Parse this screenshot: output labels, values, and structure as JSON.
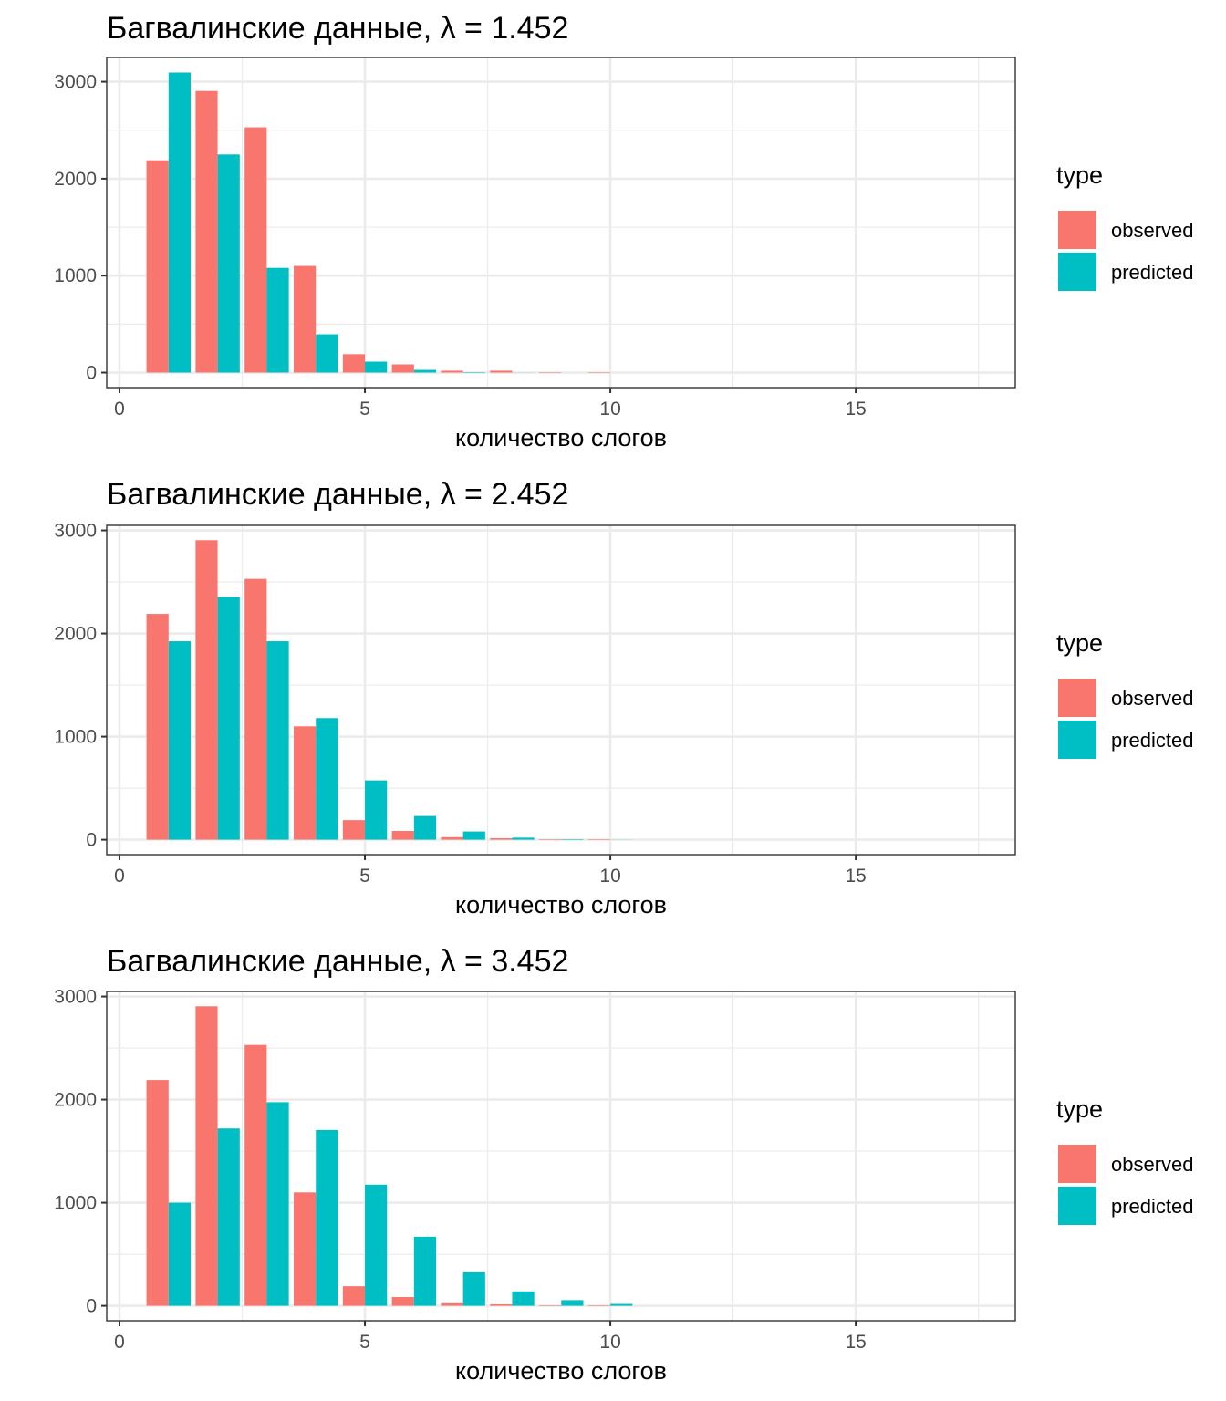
{
  "chart_data": [
    {
      "type": "bar",
      "title": "Багвалинские данные, λ = 1.452",
      "xlabel": "количество слогов",
      "ylabel": "",
      "x": [
        1,
        2,
        3,
        4,
        5,
        6,
        7,
        8,
        9,
        10
      ],
      "series": [
        {
          "name": "observed",
          "color": "#F8766D",
          "values": [
            2190,
            2905,
            2530,
            1100,
            190,
            85,
            20,
            20,
            5,
            5
          ]
        },
        {
          "name": "predicted",
          "color": "#00BFC4",
          "values": [
            3095,
            2250,
            1080,
            395,
            113,
            28,
            5,
            1,
            0,
            0
          ]
        }
      ],
      "xlim": [
        -0.26,
        18.25
      ],
      "xticks": [
        0,
        5,
        10,
        15
      ],
      "yticks": [
        0,
        1000,
        2000,
        3000
      ],
      "ylim": [
        -155,
        3250
      ],
      "grid": true,
      "legend": {
        "title": "type",
        "position": "right"
      }
    },
    {
      "type": "bar",
      "title": "Багвалинские данные, λ = 2.452",
      "xlabel": "количество слогов",
      "ylabel": "",
      "x": [
        1,
        2,
        3,
        4,
        5,
        6,
        7,
        8,
        9,
        10
      ],
      "series": [
        {
          "name": "observed",
          "color": "#F8766D",
          "values": [
            2190,
            2905,
            2530,
            1100,
            190,
            85,
            25,
            15,
            5,
            5
          ]
        },
        {
          "name": "predicted",
          "color": "#00BFC4",
          "values": [
            1925,
            2355,
            1925,
            1180,
            575,
            230,
            80,
            20,
            5,
            1
          ]
        }
      ],
      "xlim": [
        -0.26,
        18.25
      ],
      "xticks": [
        0,
        5,
        10,
        15
      ],
      "yticks": [
        0,
        1000,
        2000,
        3000
      ],
      "ylim": [
        -145,
        3049
      ],
      "grid": true,
      "legend": {
        "title": "type",
        "position": "right"
      }
    },
    {
      "type": "bar",
      "title": "Багвалинские данные, λ = 3.452",
      "xlabel": "количество слогов",
      "ylabel": "",
      "x": [
        1,
        2,
        3,
        4,
        5,
        6,
        7,
        8,
        9,
        10
      ],
      "series": [
        {
          "name": "observed",
          "color": "#F8766D",
          "values": [
            2190,
            2905,
            2530,
            1100,
            190,
            85,
            25,
            15,
            5,
            5
          ]
        },
        {
          "name": "predicted",
          "color": "#00BFC4",
          "values": [
            1000,
            1720,
            1975,
            1705,
            1175,
            670,
            325,
            140,
            55,
            18
          ]
        }
      ],
      "xlim": [
        -0.26,
        18.25
      ],
      "xticks": [
        0,
        5,
        10,
        15
      ],
      "yticks": [
        0,
        1000,
        2000,
        3000
      ],
      "ylim": [
        -145,
        3049
      ],
      "grid": true,
      "legend": {
        "title": "type",
        "position": "right"
      }
    }
  ]
}
